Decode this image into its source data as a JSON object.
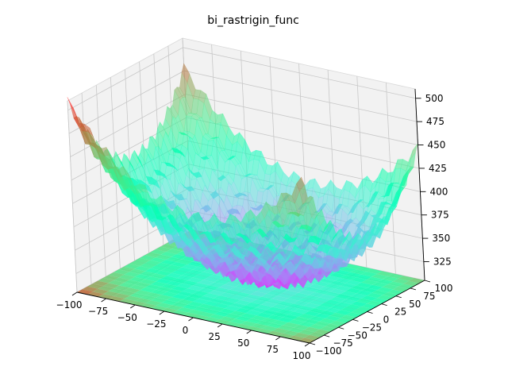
{
  "chart_data": {
    "type": "surface3d",
    "title": "bi_rastrigin_func",
    "colormap": "rainbow",
    "x_range": [
      -100,
      100
    ],
    "y_range": [
      -100,
      100
    ],
    "z_range": [
      305,
      510
    ],
    "grid": true,
    "x_ticks": [
      -100,
      -75,
      -50,
      -25,
      0,
      25,
      50,
      75,
      100
    ],
    "y_ticks": [
      -100,
      -75,
      -50,
      -25,
      0,
      25,
      50,
      75,
      100
    ],
    "z_ticks": [
      325,
      350,
      375,
      400,
      425,
      450,
      475,
      500
    ],
    "x_tick_labels": [
      "−100",
      "−75",
      "−50",
      "−25",
      "0",
      "25",
      "50",
      "75",
      "100"
    ],
    "y_tick_labels": [
      "−100",
      "−75",
      "−50",
      "−25",
      "0",
      "25",
      "50",
      "75",
      "100"
    ],
    "z_tick_labels": [
      "325",
      "350",
      "375",
      "400",
      "425",
      "450",
      "475",
      "500"
    ],
    "surface": {
      "z_min": 305,
      "z_max": 505,
      "grid_steps": 44,
      "minimum_location": [
        10,
        10
      ],
      "ripple_amplitude": 6,
      "offset_projection": true
    }
  }
}
